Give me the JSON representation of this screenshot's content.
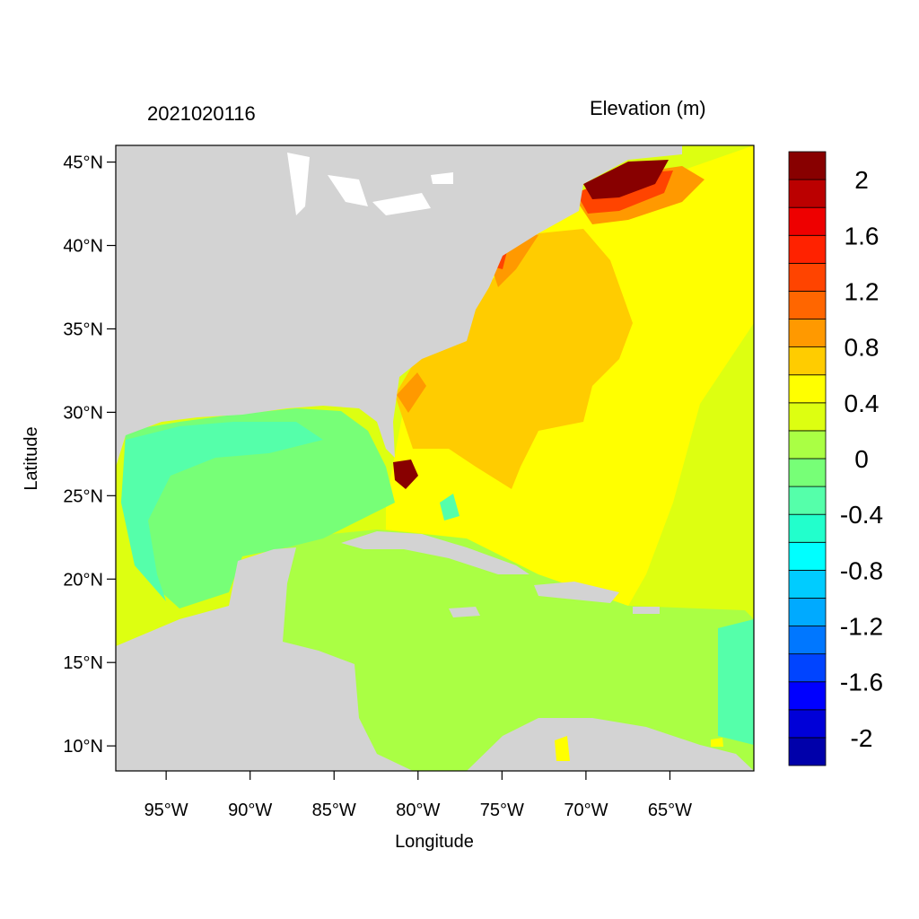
{
  "header": {
    "date_label": "2021020116",
    "variable_label": "Elevation (m)"
  },
  "axes": {
    "xlabel": "Longitude",
    "ylabel": "Latitude",
    "lat_ticks": [
      "45°N",
      "40°N",
      "35°N",
      "30°N",
      "25°N",
      "20°N",
      "15°N",
      "10°N"
    ],
    "lon_ticks": [
      "95°W",
      "90°W",
      "85°W",
      "80°W",
      "75°W",
      "70°W",
      "65°W"
    ],
    "lon_range": [
      -98,
      -60
    ],
    "lat_range": [
      8.5,
      46
    ]
  },
  "colorbar": {
    "colors": [
      "#0000aa",
      "#0000d8",
      "#0000ff",
      "#0044ff",
      "#0077ff",
      "#00aaff",
      "#00ccff",
      "#00ffff",
      "#22ffcc",
      "#55ffaa",
      "#77ff77",
      "#aaff44",
      "#ddff11",
      "#ffff00",
      "#ffcc00",
      "#ff9900",
      "#ff6600",
      "#ff4400",
      "#ff2200",
      "#ee0000",
      "#bb0000",
      "#880000"
    ],
    "tick_labels": [
      "-2",
      "-1.6",
      "-1.2",
      "-0.8",
      "-0.4",
      "0",
      "0.4",
      "0.8",
      "1.2",
      "1.6",
      "2"
    ]
  },
  "legend_colors": {
    "land": "#d3d3d3",
    "gulf": "#77ff77",
    "caribbean": "#aaff44",
    "atlantic_east": "#ddff11",
    "atlantic_mid": "#ffff00",
    "shelf": "#ffcc00",
    "surge_high": "#880000"
  }
}
